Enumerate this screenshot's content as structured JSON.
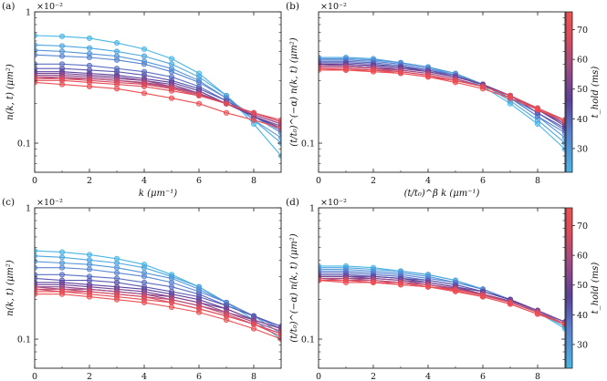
{
  "chart_data": {
    "type": "line",
    "panels": [
      {
        "id": "a",
        "label": "(a)",
        "xlabel": "k (μm⁻¹)",
        "ylabel": "n(k, t) (μm²)",
        "yscale": "log",
        "multiplier": "×10⁻²",
        "xlim": [
          0,
          9
        ],
        "ylim": [
          0.06,
          1
        ],
        "x_ticks": [
          "0",
          "2",
          "4",
          "6",
          "8"
        ],
        "y_ticks": [
          "1",
          "0.1"
        ],
        "series": [
          {
            "t": 22,
            "values": [
              0.66,
              0.65,
              0.63,
              0.58,
              0.52,
              0.44,
              0.34,
              0.23,
              0.14,
              0.08
            ]
          },
          {
            "t": 26,
            "values": [
              0.56,
              0.55,
              0.53,
              0.5,
              0.46,
              0.4,
              0.32,
              0.23,
              0.15,
              0.1
            ]
          },
          {
            "t": 30,
            "values": [
              0.51,
              0.5,
              0.48,
              0.46,
              0.42,
              0.37,
              0.3,
              0.22,
              0.15,
              0.11
            ]
          },
          {
            "t": 34,
            "values": [
              0.47,
              0.46,
              0.45,
              0.43,
              0.4,
              0.35,
              0.29,
              0.22,
              0.16,
              0.12
            ]
          },
          {
            "t": 38,
            "values": [
              0.4,
              0.4,
              0.39,
              0.37,
              0.35,
              0.32,
              0.27,
              0.21,
              0.16,
              0.125
            ]
          },
          {
            "t": 42,
            "values": [
              0.37,
              0.37,
              0.36,
              0.35,
              0.33,
              0.3,
              0.26,
              0.21,
              0.16,
              0.13
            ]
          },
          {
            "t": 46,
            "values": [
              0.35,
              0.35,
              0.34,
              0.33,
              0.31,
              0.29,
              0.25,
              0.2,
              0.16,
              0.13
            ]
          },
          {
            "t": 50,
            "values": [
              0.34,
              0.34,
              0.33,
              0.32,
              0.3,
              0.28,
              0.24,
              0.2,
              0.16,
              0.135
            ]
          },
          {
            "t": 54,
            "values": [
              0.33,
              0.33,
              0.32,
              0.31,
              0.3,
              0.27,
              0.24,
              0.2,
              0.165,
              0.14
            ]
          },
          {
            "t": 58,
            "values": [
              0.32,
              0.32,
              0.31,
              0.3,
              0.29,
              0.27,
              0.24,
              0.2,
              0.165,
              0.14
            ]
          },
          {
            "t": 62,
            "values": [
              0.32,
              0.31,
              0.31,
              0.3,
              0.285,
              0.265,
              0.235,
              0.2,
              0.17,
              0.145
            ]
          },
          {
            "t": 66,
            "values": [
              0.31,
              0.31,
              0.3,
              0.29,
              0.28,
              0.26,
              0.23,
              0.2,
              0.17,
              0.145
            ]
          },
          {
            "t": 70,
            "values": [
              0.3,
              0.3,
              0.29,
              0.28,
              0.27,
              0.25,
              0.23,
              0.2,
              0.17,
              0.15
            ]
          },
          {
            "t": 74,
            "values": [
              0.29,
              0.28,
              0.27,
              0.26,
              0.24,
              0.22,
              0.2,
              0.17,
              0.15,
              0.13
            ]
          }
        ]
      },
      {
        "id": "b",
        "label": "(b)",
        "xlabel": "(t/t₀)^β k (μm⁻¹)",
        "ylabel": "(t/t₀)^(−α) n(k, t) (μm²)",
        "yscale": "log",
        "multiplier": "×10⁻²",
        "xlim": [
          0,
          9
        ],
        "ylim": [
          0.06,
          1
        ],
        "x_ticks": [
          "0",
          "2",
          "4",
          "6",
          "8"
        ],
        "y_ticks": [
          "0.1"
        ],
        "series": [
          {
            "t": 22,
            "values": [
              0.44,
              0.44,
              0.43,
              0.41,
              0.38,
              0.33,
              0.27,
              0.2,
              0.14,
              0.09
            ]
          },
          {
            "t": 26,
            "values": [
              0.45,
              0.45,
              0.44,
              0.41,
              0.38,
              0.34,
              0.28,
              0.21,
              0.15,
              0.1
            ]
          },
          {
            "t": 30,
            "values": [
              0.44,
              0.44,
              0.43,
              0.41,
              0.38,
              0.34,
              0.28,
              0.22,
              0.16,
              0.11
            ]
          },
          {
            "t": 34,
            "values": [
              0.43,
              0.43,
              0.42,
              0.4,
              0.37,
              0.33,
              0.28,
              0.22,
              0.16,
              0.12
            ]
          },
          {
            "t": 38,
            "values": [
              0.42,
              0.42,
              0.41,
              0.39,
              0.36,
              0.33,
              0.28,
              0.22,
              0.17,
              0.125
            ]
          },
          {
            "t": 42,
            "values": [
              0.41,
              0.41,
              0.4,
              0.38,
              0.36,
              0.32,
              0.28,
              0.23,
              0.17,
              0.13
            ]
          },
          {
            "t": 46,
            "values": [
              0.4,
              0.4,
              0.39,
              0.38,
              0.35,
              0.32,
              0.28,
              0.23,
              0.18,
              0.135
            ]
          },
          {
            "t": 50,
            "values": [
              0.4,
              0.39,
              0.38,
              0.37,
              0.35,
              0.32,
              0.28,
              0.23,
              0.18,
              0.14
            ]
          },
          {
            "t": 54,
            "values": [
              0.39,
              0.39,
              0.38,
              0.36,
              0.34,
              0.31,
              0.27,
              0.23,
              0.18,
              0.14
            ]
          },
          {
            "t": 58,
            "values": [
              0.38,
              0.38,
              0.37,
              0.36,
              0.34,
              0.31,
              0.27,
              0.23,
              0.18,
              0.145
            ]
          },
          {
            "t": 62,
            "values": [
              0.38,
              0.38,
              0.37,
              0.35,
              0.33,
              0.3,
              0.27,
              0.23,
              0.18,
              0.145
            ]
          },
          {
            "t": 66,
            "values": [
              0.37,
              0.37,
              0.36,
              0.35,
              0.33,
              0.3,
              0.27,
              0.23,
              0.185,
              0.15
            ]
          },
          {
            "t": 70,
            "values": [
              0.37,
              0.36,
              0.36,
              0.34,
              0.32,
              0.3,
              0.27,
              0.23,
              0.185,
              0.15
            ]
          },
          {
            "t": 74,
            "values": [
              0.36,
              0.36,
              0.35,
              0.34,
              0.32,
              0.29,
              0.26,
              0.22,
              0.18,
              0.15
            ]
          }
        ]
      },
      {
        "id": "c",
        "label": "(c)",
        "xlabel": "k (μm⁻¹)",
        "ylabel": "n(k, t) (μm²)",
        "yscale": "log",
        "multiplier": "×10⁻²",
        "xlim": [
          0,
          9
        ],
        "ylim": [
          0.06,
          1
        ],
        "x_ticks": [
          "0",
          "2",
          "4",
          "6",
          "8"
        ],
        "y_ticks": [
          "1",
          "0.1"
        ],
        "series": [
          {
            "t": 22,
            "values": [
              0.47,
              0.46,
              0.44,
              0.41,
              0.37,
              0.31,
              0.25,
              0.19,
              0.14,
              0.1
            ]
          },
          {
            "t": 26,
            "values": [
              0.43,
              0.42,
              0.4,
              0.38,
              0.35,
              0.3,
              0.25,
              0.19,
              0.15,
              0.11
            ]
          },
          {
            "t": 30,
            "values": [
              0.39,
              0.38,
              0.37,
              0.35,
              0.32,
              0.29,
              0.24,
              0.19,
              0.15,
              0.12
            ]
          },
          {
            "t": 34,
            "values": [
              0.35,
              0.35,
              0.34,
              0.32,
              0.3,
              0.27,
              0.23,
              0.19,
              0.15,
              0.12
            ]
          },
          {
            "t": 38,
            "values": [
              0.31,
              0.31,
              0.3,
              0.29,
              0.27,
              0.25,
              0.22,
              0.18,
              0.15,
              0.125
            ]
          },
          {
            "t": 42,
            "values": [
              0.29,
              0.28,
              0.28,
              0.27,
              0.25,
              0.23,
              0.21,
              0.18,
              0.15,
              0.125
            ]
          },
          {
            "t": 46,
            "values": [
              0.27,
              0.27,
              0.26,
              0.25,
              0.24,
              0.22,
              0.2,
              0.17,
              0.14,
              0.12
            ]
          },
          {
            "t": 50,
            "values": [
              0.26,
              0.26,
              0.25,
              0.24,
              0.23,
              0.21,
              0.19,
              0.17,
              0.14,
              0.12
            ]
          },
          {
            "t": 54,
            "values": [
              0.25,
              0.25,
              0.24,
              0.23,
              0.22,
              0.21,
              0.19,
              0.16,
              0.14,
              0.12
            ]
          },
          {
            "t": 58,
            "values": [
              0.25,
              0.24,
              0.24,
              0.23,
              0.22,
              0.2,
              0.18,
              0.16,
              0.135,
              0.115
            ]
          },
          {
            "t": 62,
            "values": [
              0.24,
              0.24,
              0.23,
              0.22,
              0.21,
              0.2,
              0.18,
              0.155,
              0.13,
              0.11
            ]
          },
          {
            "t": 66,
            "values": [
              0.24,
              0.23,
              0.23,
              0.22,
              0.21,
              0.19,
              0.17,
              0.15,
              0.13,
              0.11
            ]
          },
          {
            "t": 70,
            "values": [
              0.23,
              0.23,
              0.22,
              0.21,
              0.2,
              0.19,
              0.17,
              0.15,
              0.13,
              0.105
            ]
          },
          {
            "t": 74,
            "values": [
              0.22,
              0.22,
              0.21,
              0.2,
              0.19,
              0.175,
              0.16,
              0.14,
              0.12,
              0.1
            ]
          }
        ]
      },
      {
        "id": "d",
        "label": "(d)",
        "xlabel": "(t/t₀)^β k (μm⁻¹)",
        "ylabel": "(t/t₀)^(−α) n(k, t) (μm²)",
        "yscale": "log",
        "multiplier": "×10⁻²",
        "xlim": [
          0,
          9
        ],
        "ylim": [
          0.06,
          1
        ],
        "x_ticks": [
          "0",
          "2",
          "4",
          "6",
          "8"
        ],
        "y_ticks": [
          "1",
          "0.1"
        ],
        "series": [
          {
            "t": 22,
            "values": [
              0.36,
              0.36,
              0.35,
              0.33,
              0.31,
              0.28,
              0.24,
              0.2,
              0.16,
              0.12
            ]
          },
          {
            "t": 26,
            "values": [
              0.35,
              0.35,
              0.34,
              0.33,
              0.31,
              0.28,
              0.24,
              0.2,
              0.16,
              0.125
            ]
          },
          {
            "t": 30,
            "values": [
              0.34,
              0.34,
              0.33,
              0.32,
              0.3,
              0.27,
              0.24,
              0.2,
              0.16,
              0.13
            ]
          },
          {
            "t": 34,
            "values": [
              0.33,
              0.33,
              0.32,
              0.31,
              0.29,
              0.27,
              0.24,
              0.2,
              0.165,
              0.13
            ]
          },
          {
            "t": 38,
            "values": [
              0.32,
              0.32,
              0.31,
              0.3,
              0.28,
              0.26,
              0.23,
              0.2,
              0.165,
              0.135
            ]
          },
          {
            "t": 42,
            "values": [
              0.31,
              0.31,
              0.3,
              0.29,
              0.28,
              0.26,
              0.23,
              0.2,
              0.165,
              0.135
            ]
          },
          {
            "t": 46,
            "values": [
              0.3,
              0.3,
              0.3,
              0.29,
              0.27,
              0.25,
              0.23,
              0.2,
              0.165,
              0.135
            ]
          },
          {
            "t": 50,
            "values": [
              0.3,
              0.3,
              0.29,
              0.28,
              0.27,
              0.25,
              0.22,
              0.195,
              0.165,
              0.135
            ]
          },
          {
            "t": 54,
            "values": [
              0.29,
              0.29,
              0.29,
              0.28,
              0.26,
              0.245,
              0.22,
              0.195,
              0.165,
              0.135
            ]
          },
          {
            "t": 58,
            "values": [
              0.29,
              0.29,
              0.28,
              0.27,
              0.26,
              0.24,
              0.22,
              0.19,
              0.16,
              0.13
            ]
          },
          {
            "t": 62,
            "values": [
              0.29,
              0.28,
              0.28,
              0.27,
              0.26,
              0.24,
              0.22,
              0.19,
              0.16,
              0.13
            ]
          },
          {
            "t": 66,
            "values": [
              0.28,
              0.28,
              0.27,
              0.27,
              0.25,
              0.24,
              0.215,
              0.19,
              0.16,
              0.13
            ]
          },
          {
            "t": 70,
            "values": [
              0.28,
              0.28,
              0.27,
              0.26,
              0.25,
              0.235,
              0.21,
              0.185,
              0.155,
              0.13
            ]
          },
          {
            "t": 74,
            "values": [
              0.28,
              0.27,
              0.27,
              0.26,
              0.25,
              0.23,
              0.21,
              0.185,
              0.155,
              0.13
            ]
          }
        ]
      }
    ],
    "x_points": [
      0,
      1,
      2,
      3,
      4,
      5,
      6,
      7,
      8,
      9
    ],
    "colorbar": {
      "label": "t_hold (ms)",
      "min": 22,
      "max": 76,
      "ticks": [
        "30",
        "40",
        "50",
        "60",
        "70"
      ],
      "colors": [
        "#48b6e6",
        "#5a7fd0",
        "#5b3f9a",
        "#a04a86",
        "#e04a5a",
        "#f05050"
      ]
    }
  }
}
